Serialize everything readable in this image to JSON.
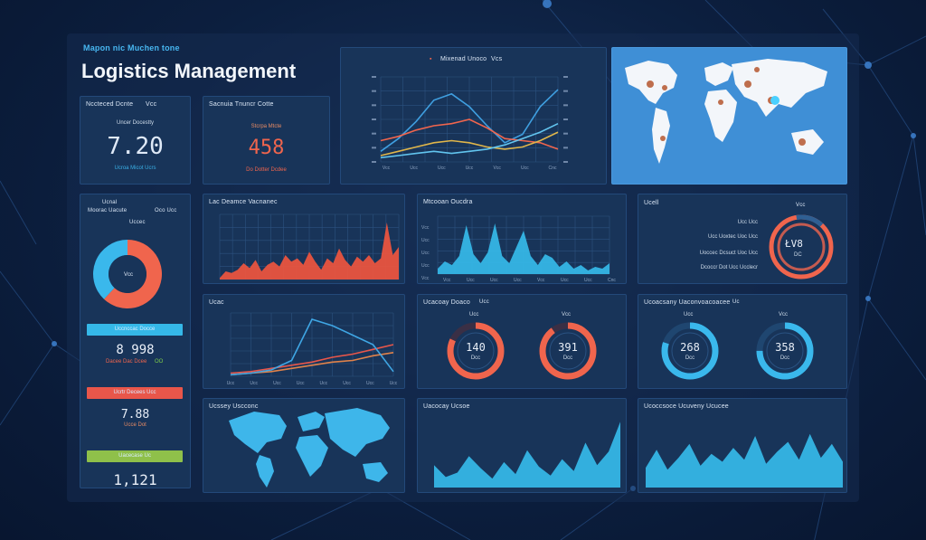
{
  "header": {
    "subtitle": "Mapon nic Muchen tone",
    "title": "Logistics Management"
  },
  "kpis": [
    {
      "label": "Nccteced Dcnte",
      "label2": "Vcc",
      "sublabel": "Uncer Docestty",
      "value": "7.20",
      "caption": "Ucroa Micot Ucrs",
      "color": "#dfe9f7",
      "caption_color": "#3ab0e6"
    },
    {
      "label": "Sacnuia Tnuncr Cotte",
      "sublabel": "Stcrpa Mtcte",
      "value": "458",
      "caption": "Do Dotter Dcdee",
      "color": "#f0654d",
      "caption_color": "#f0654d"
    }
  ],
  "line_panel": {
    "legend": [
      "Mixenad Unoco",
      "Vcs"
    ],
    "x_ticks": [
      "Vcc",
      "Ucc",
      "Ucc",
      "Ucc",
      "Vcc",
      "Ucc",
      "Cnc"
    ],
    "series": [
      {
        "name": "blue",
        "color": "#3f9fe0",
        "values": [
          10,
          22,
          38,
          58,
          64,
          52,
          34,
          18,
          26,
          52,
          68
        ]
      },
      {
        "name": "orange",
        "color": "#f0654d",
        "values": [
          20,
          24,
          30,
          34,
          36,
          40,
          32,
          22,
          20,
          18,
          12
        ]
      },
      {
        "name": "yellow",
        "color": "#e0b64a",
        "values": [
          6,
          10,
          14,
          18,
          20,
          18,
          14,
          12,
          14,
          20,
          28
        ]
      },
      {
        "name": "lightblue",
        "color": "#62c5ef",
        "values": [
          4,
          6,
          8,
          10,
          8,
          10,
          12,
          16,
          22,
          28,
          36
        ]
      }
    ]
  },
  "donut_panel": {
    "label1": "Ucnal",
    "label2": "Moorac Uacute",
    "label3": "Uccec",
    "label2b": "Oco Ucc",
    "center": "Vcc",
    "slices": [
      {
        "value": 62,
        "color": "#f0654d"
      },
      {
        "value": 38,
        "color": "#3ab8ec"
      }
    ],
    "bar1_label": "Uccnccac Docce",
    "value1": "8 998",
    "cap1a": "Dacee Dac Dcee",
    "cap1b": "OO",
    "bar2_label": "Ucrtr Decees Ucc",
    "value2": "7.88",
    "cap2": "Ucce Dot",
    "bar3_label": "Uacecase Uc",
    "value3": "1,121"
  },
  "area_red": {
    "title": "Lac Deamce Vacnanec",
    "values": [
      2,
      10,
      8,
      12,
      20,
      14,
      24,
      10,
      18,
      22,
      16,
      30,
      22,
      26,
      18,
      34,
      22,
      12,
      26,
      20,
      38,
      24,
      16,
      28,
      22,
      30,
      20,
      26,
      70,
      30,
      40
    ]
  },
  "area_blue1": {
    "title": "Mtcooan Oucdra",
    "y_ticks": [
      "Vcc",
      "Ucc",
      "Ucc",
      "Ucc",
      "Vcc"
    ],
    "x_ticks": [
      "Vcc",
      "Ucc",
      "Ucc",
      "Ucc",
      "Vcc",
      "Ucc",
      "Ucc",
      "Cnc"
    ],
    "values": [
      6,
      14,
      10,
      20,
      54,
      22,
      12,
      24,
      56,
      20,
      12,
      30,
      48,
      20,
      10,
      22,
      18,
      8,
      14,
      6,
      10,
      4,
      8,
      6,
      12
    ]
  },
  "ring_panel": {
    "label": "Ucell",
    "tag": "Vcc",
    "center": "ŁV8",
    "subcenter": "DC",
    "rows": [
      "Ucc Ucc",
      "Ucc Uoxtec Uoc Ucc",
      "Uoccec Dcsuct Uoc Ucc",
      "Dcoccr Dot Ucc Ucclecr"
    ]
  },
  "line2": {
    "title": "Ucac",
    "x_ticks": [
      "Ucc",
      "Ucc",
      "Ucc",
      "Ucc",
      "Ucc",
      "Ucc",
      "Ucc",
      "Ucc"
    ],
    "blue": [
      2,
      4,
      8,
      20,
      72,
      64,
      52,
      40,
      6
    ],
    "red": [
      4,
      6,
      10,
      14,
      18,
      24,
      28,
      34,
      40
    ],
    "orange": [
      2,
      4,
      6,
      10,
      14,
      18,
      20,
      26,
      30
    ]
  },
  "gauges_red": {
    "title": "Ucacoay Doaco",
    "tag": "Ucc",
    "items": [
      {
        "label": "Ucc",
        "value": "140",
        "sub": "Dcc",
        "fill": 0.82
      },
      {
        "label": "Vcc",
        "value": "391",
        "sub": "Dcc",
        "fill": 0.9
      }
    ]
  },
  "gauges_blue": {
    "title": "Ucoacsany Uaconvoacoacee",
    "tag": "Uc",
    "items": [
      {
        "label": "Ucc",
        "value": "268",
        "sub": "Dcc",
        "fill": 0.8
      },
      {
        "label": "Vcc",
        "value": "358",
        "sub": "Dcc",
        "fill": 0.75
      }
    ]
  },
  "map_small": {
    "title": "Ucssey Uscconc"
  },
  "area_b2": {
    "title": "Uacocay Ucsoe",
    "values": [
      30,
      14,
      20,
      42,
      26,
      12,
      34,
      18,
      50,
      28,
      16,
      38,
      22,
      60,
      30,
      48,
      88
    ]
  },
  "area_b3": {
    "title": "Ucoccsoce Ucuveny Ucucee",
    "values": [
      20,
      38,
      18,
      30,
      44,
      22,
      34,
      26,
      40,
      28,
      52,
      24,
      36,
      46,
      28,
      54,
      30,
      44,
      26
    ]
  },
  "colors": {
    "accent_blue": "#3ab8ec",
    "accent_red": "#f0654d",
    "accent_green": "#8fc04a",
    "panel": "#183459"
  }
}
